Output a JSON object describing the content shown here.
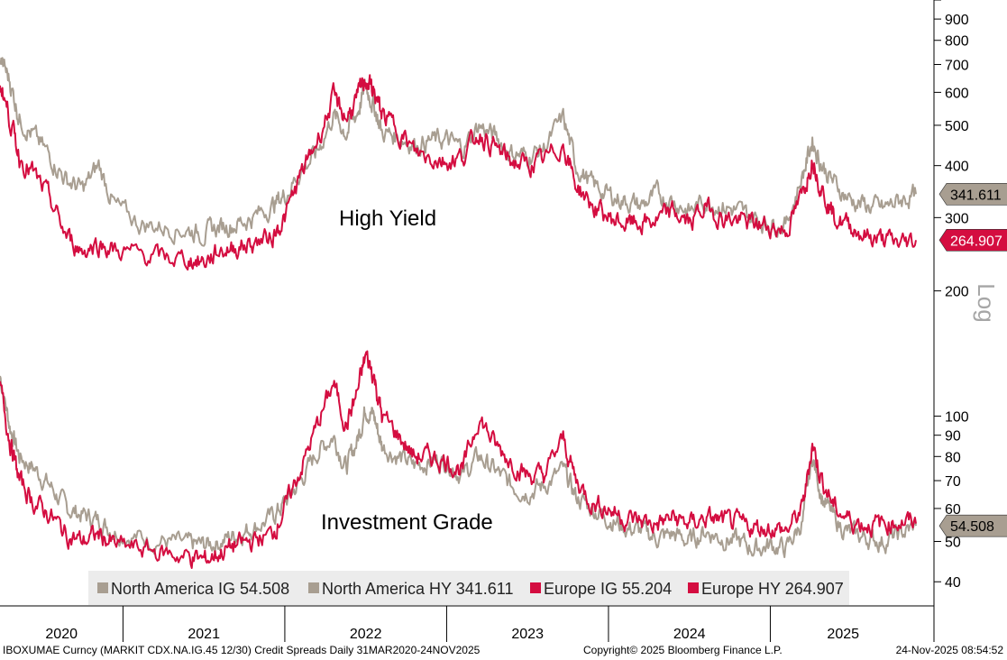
{
  "chart_data": {
    "type": "line",
    "y_scale": "log",
    "scale_label": "Log",
    "ylim": [
      35,
      1000
    ],
    "y_ticks": [
      40,
      50,
      60,
      70,
      80,
      90,
      100,
      200,
      300,
      400,
      500,
      600,
      700,
      800,
      900
    ],
    "x_range": [
      2020.24,
      2025.9
    ],
    "year_labels": [
      "2020",
      "2021",
      "2022",
      "2023",
      "2024",
      "2025"
    ],
    "annotations": [
      "High Yield",
      "Investment Grade"
    ],
    "series": [
      {
        "name": "North America IG",
        "legend_label": "North America IG 54.508",
        "last_label": "54.508",
        "color": "#a89e91",
        "points": [
          [
            2020.24,
            125
          ],
          [
            2020.3,
            95
          ],
          [
            2020.36,
            80
          ],
          [
            2020.45,
            75
          ],
          [
            2020.55,
            68
          ],
          [
            2020.65,
            60
          ],
          [
            2020.75,
            58
          ],
          [
            2020.85,
            56
          ],
          [
            2020.95,
            53
          ],
          [
            2021.1,
            51
          ],
          [
            2021.25,
            50
          ],
          [
            2021.4,
            49
          ],
          [
            2021.5,
            49
          ],
          [
            2021.6,
            50
          ],
          [
            2021.7,
            52
          ],
          [
            2021.8,
            54
          ],
          [
            2021.92,
            57
          ],
          [
            2022.0,
            62
          ],
          [
            2022.1,
            70
          ],
          [
            2022.2,
            82
          ],
          [
            2022.3,
            90
          ],
          [
            2022.38,
            75
          ],
          [
            2022.45,
            88
          ],
          [
            2022.5,
            105
          ],
          [
            2022.55,
            100
          ],
          [
            2022.6,
            85
          ],
          [
            2022.7,
            80
          ],
          [
            2022.8,
            76
          ],
          [
            2022.9,
            78
          ],
          [
            2023.0,
            78
          ],
          [
            2023.1,
            72
          ],
          [
            2023.2,
            80
          ],
          [
            2023.3,
            74
          ],
          [
            2023.4,
            68
          ],
          [
            2023.5,
            66
          ],
          [
            2023.6,
            68
          ],
          [
            2023.72,
            74
          ],
          [
            2023.8,
            64
          ],
          [
            2023.9,
            60
          ],
          [
            2024.0,
            57
          ],
          [
            2024.1,
            54
          ],
          [
            2024.2,
            53
          ],
          [
            2024.3,
            51
          ],
          [
            2024.4,
            52
          ],
          [
            2024.5,
            50
          ],
          [
            2024.6,
            53
          ],
          [
            2024.7,
            51
          ],
          [
            2024.8,
            50
          ],
          [
            2024.9,
            48
          ],
          [
            2025.0,
            49
          ],
          [
            2025.1,
            48
          ],
          [
            2025.2,
            56
          ],
          [
            2025.26,
            80
          ],
          [
            2025.32,
            64
          ],
          [
            2025.4,
            56
          ],
          [
            2025.5,
            52
          ],
          [
            2025.6,
            51
          ],
          [
            2025.7,
            50
          ],
          [
            2025.8,
            52
          ],
          [
            2025.9,
            54.508
          ]
        ]
      },
      {
        "name": "North America HY",
        "legend_label": "North America HY 341.611",
        "last_label": "341.611",
        "color": "#a89e91",
        "points": [
          [
            2020.24,
            730
          ],
          [
            2020.3,
            640
          ],
          [
            2020.36,
            520
          ],
          [
            2020.45,
            470
          ],
          [
            2020.55,
            420
          ],
          [
            2020.65,
            370
          ],
          [
            2020.75,
            350
          ],
          [
            2020.85,
            400
          ],
          [
            2020.95,
            320
          ],
          [
            2021.1,
            290
          ],
          [
            2021.25,
            285
          ],
          [
            2021.4,
            280
          ],
          [
            2021.5,
            275
          ],
          [
            2021.6,
            285
          ],
          [
            2021.7,
            290
          ],
          [
            2021.8,
            300
          ],
          [
            2021.92,
            320
          ],
          [
            2022.0,
            340
          ],
          [
            2022.1,
            390
          ],
          [
            2022.2,
            430
          ],
          [
            2022.3,
            530
          ],
          [
            2022.38,
            480
          ],
          [
            2022.45,
            540
          ],
          [
            2022.5,
            620
          ],
          [
            2022.55,
            560
          ],
          [
            2022.6,
            480
          ],
          [
            2022.7,
            470
          ],
          [
            2022.8,
            450
          ],
          [
            2022.9,
            460
          ],
          [
            2023.0,
            460
          ],
          [
            2023.1,
            440
          ],
          [
            2023.2,
            500
          ],
          [
            2023.3,
            470
          ],
          [
            2023.4,
            430
          ],
          [
            2023.5,
            420
          ],
          [
            2023.6,
            440
          ],
          [
            2023.72,
            520
          ],
          [
            2023.8,
            400
          ],
          [
            2023.9,
            360
          ],
          [
            2024.0,
            340
          ],
          [
            2024.1,
            330
          ],
          [
            2024.2,
            320
          ],
          [
            2024.3,
            340
          ],
          [
            2024.4,
            330
          ],
          [
            2024.5,
            310
          ],
          [
            2024.6,
            330
          ],
          [
            2024.7,
            320
          ],
          [
            2024.8,
            310
          ],
          [
            2024.9,
            300
          ],
          [
            2025.0,
            290
          ],
          [
            2025.1,
            290
          ],
          [
            2025.2,
            380
          ],
          [
            2025.26,
            460
          ],
          [
            2025.32,
            400
          ],
          [
            2025.4,
            360
          ],
          [
            2025.5,
            330
          ],
          [
            2025.6,
            320
          ],
          [
            2025.7,
            315
          ],
          [
            2025.8,
            330
          ],
          [
            2025.9,
            341.611
          ]
        ]
      },
      {
        "name": "Europe IG",
        "legend_label": "Europe IG 55.204",
        "last_label": "55.204",
        "color": "#d40d40",
        "points": [
          [
            2020.24,
            118
          ],
          [
            2020.3,
            88
          ],
          [
            2020.36,
            70
          ],
          [
            2020.45,
            62
          ],
          [
            2020.55,
            58
          ],
          [
            2020.65,
            52
          ],
          [
            2020.75,
            50
          ],
          [
            2020.85,
            52
          ],
          [
            2020.95,
            49
          ],
          [
            2021.1,
            48
          ],
          [
            2021.25,
            47
          ],
          [
            2021.4,
            46
          ],
          [
            2021.5,
            45
          ],
          [
            2021.6,
            47
          ],
          [
            2021.7,
            49
          ],
          [
            2021.8,
            50
          ],
          [
            2021.92,
            52
          ],
          [
            2022.0,
            60
          ],
          [
            2022.1,
            75
          ],
          [
            2022.2,
            95
          ],
          [
            2022.3,
            120
          ],
          [
            2022.38,
            95
          ],
          [
            2022.45,
            115
          ],
          [
            2022.5,
            140
          ],
          [
            2022.55,
            125
          ],
          [
            2022.6,
            100
          ],
          [
            2022.7,
            90
          ],
          [
            2022.8,
            80
          ],
          [
            2022.9,
            80
          ],
          [
            2023.0,
            78
          ],
          [
            2023.1,
            74
          ],
          [
            2023.2,
            100
          ],
          [
            2023.3,
            85
          ],
          [
            2023.4,
            78
          ],
          [
            2023.5,
            72
          ],
          [
            2023.6,
            72
          ],
          [
            2023.72,
            88
          ],
          [
            2023.8,
            70
          ],
          [
            2023.9,
            62
          ],
          [
            2024.0,
            60
          ],
          [
            2024.1,
            57
          ],
          [
            2024.2,
            56
          ],
          [
            2024.3,
            55
          ],
          [
            2024.4,
            57
          ],
          [
            2024.5,
            55
          ],
          [
            2024.6,
            57
          ],
          [
            2024.7,
            56
          ],
          [
            2024.8,
            55
          ],
          [
            2024.9,
            54
          ],
          [
            2025.0,
            54
          ],
          [
            2025.1,
            53
          ],
          [
            2025.2,
            60
          ],
          [
            2025.26,
            86
          ],
          [
            2025.32,
            70
          ],
          [
            2025.4,
            60
          ],
          [
            2025.5,
            56
          ],
          [
            2025.6,
            55
          ],
          [
            2025.7,
            55
          ],
          [
            2025.8,
            56
          ],
          [
            2025.9,
            55.204
          ]
        ]
      },
      {
        "name": "Europe HY",
        "legend_label": "Europe HY 264.907",
        "last_label": "264.907",
        "color": "#d40d40",
        "points": [
          [
            2020.24,
            640
          ],
          [
            2020.3,
            520
          ],
          [
            2020.36,
            420
          ],
          [
            2020.45,
            380
          ],
          [
            2020.55,
            330
          ],
          [
            2020.65,
            270
          ],
          [
            2020.75,
            250
          ],
          [
            2020.85,
            260
          ],
          [
            2020.95,
            250
          ],
          [
            2021.1,
            245
          ],
          [
            2021.25,
            240
          ],
          [
            2021.4,
            238
          ],
          [
            2021.5,
            235
          ],
          [
            2021.6,
            250
          ],
          [
            2021.7,
            255
          ],
          [
            2021.8,
            260
          ],
          [
            2021.92,
            270
          ],
          [
            2022.0,
            300
          ],
          [
            2022.1,
            380
          ],
          [
            2022.2,
            460
          ],
          [
            2022.3,
            580
          ],
          [
            2022.38,
            520
          ],
          [
            2022.45,
            580
          ],
          [
            2022.5,
            650
          ],
          [
            2022.55,
            600
          ],
          [
            2022.6,
            530
          ],
          [
            2022.7,
            490
          ],
          [
            2022.8,
            430
          ],
          [
            2022.9,
            420
          ],
          [
            2023.0,
            410
          ],
          [
            2023.1,
            420
          ],
          [
            2023.2,
            480
          ],
          [
            2023.3,
            440
          ],
          [
            2023.4,
            410
          ],
          [
            2023.5,
            400
          ],
          [
            2023.6,
            410
          ],
          [
            2023.72,
            450
          ],
          [
            2023.8,
            360
          ],
          [
            2023.9,
            320
          ],
          [
            2024.0,
            300
          ],
          [
            2024.1,
            290
          ],
          [
            2024.2,
            290
          ],
          [
            2024.3,
            295
          ],
          [
            2024.4,
            310
          ],
          [
            2024.5,
            290
          ],
          [
            2024.6,
            320
          ],
          [
            2024.7,
            300
          ],
          [
            2024.8,
            295
          ],
          [
            2024.9,
            290
          ],
          [
            2025.0,
            285
          ],
          [
            2025.1,
            280
          ],
          [
            2025.2,
            340
          ],
          [
            2025.26,
            420
          ],
          [
            2025.32,
            350
          ],
          [
            2025.4,
            300
          ],
          [
            2025.5,
            285
          ],
          [
            2025.6,
            270
          ],
          [
            2025.7,
            265
          ],
          [
            2025.8,
            260
          ],
          [
            2025.9,
            264.907
          ]
        ]
      }
    ],
    "right_tags": [
      {
        "series": "North America HY",
        "value": 341.611,
        "label": "341.611",
        "fill": "#a89e91",
        "text_color": "#000000"
      },
      {
        "series": "Europe HY",
        "value": 264.907,
        "label": "264.907",
        "fill": "#d40d40",
        "text_color": "#ffffff"
      },
      {
        "series": "North America IG",
        "value": 54.508,
        "label": "54.508",
        "fill": "#a89e91",
        "text_color": "#000000"
      }
    ]
  },
  "footer": {
    "source": "IBOXUMAE Curncy (MARKIT CDX.NA.IG.45 12/30) Credit Spreads Daily 31MAR2020-24NOV2025",
    "copyright": "Copyright© 2025 Bloomberg Finance L.P.",
    "timestamp": "24-Nov-2025 08:54:52"
  },
  "colors": {
    "north_america": "#a89e91",
    "europe": "#d40d40",
    "legend_bg": "#ececec"
  }
}
